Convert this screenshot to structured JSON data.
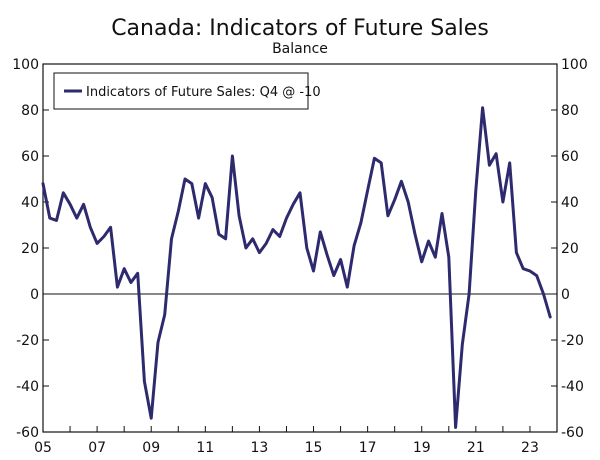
{
  "chart_data": {
    "type": "line",
    "title": "Canada: Indicators of Future Sales",
    "subtitle": "Balance",
    "xlabel": "",
    "ylabel": "",
    "ylim": [
      -60,
      100
    ],
    "y_ticks": [
      -60,
      -40,
      -20,
      0,
      20,
      40,
      60,
      80,
      100
    ],
    "y_tick_labels": [
      "-60",
      "-40",
      "-20",
      "0",
      "20",
      "40",
      "60",
      "80",
      "100"
    ],
    "xlim": [
      2005.0,
      2024.0
    ],
    "x_ticks": [
      2005,
      2007,
      2009,
      2011,
      2013,
      2015,
      2017,
      2019,
      2021,
      2023
    ],
    "x_tick_labels": [
      "05",
      "07",
      "09",
      "11",
      "13",
      "15",
      "17",
      "19",
      "21",
      "23"
    ],
    "right_axis": true,
    "grid": false,
    "zero_line": true,
    "legend": {
      "placement": "top-left",
      "entries": [
        "Indicators of Future Sales: Q4 @ -10"
      ]
    },
    "series": [
      {
        "name": "Indicators of Future Sales: Q4 @ -10",
        "color": "#2e2a6e",
        "x": [
          2005.0,
          2005.25,
          2005.5,
          2005.75,
          2006.0,
          2006.25,
          2006.5,
          2006.75,
          2007.0,
          2007.25,
          2007.5,
          2007.75,
          2008.0,
          2008.25,
          2008.5,
          2008.75,
          2009.0,
          2009.25,
          2009.5,
          2009.75,
          2010.0,
          2010.25,
          2010.5,
          2010.75,
          2011.0,
          2011.25,
          2011.5,
          2011.75,
          2012.0,
          2012.25,
          2012.5,
          2012.75,
          2013.0,
          2013.25,
          2013.5,
          2013.75,
          2014.0,
          2014.25,
          2014.5,
          2014.75,
          2015.0,
          2015.25,
          2015.5,
          2015.75,
          2016.0,
          2016.25,
          2016.5,
          2016.75,
          2017.0,
          2017.25,
          2017.5,
          2017.75,
          2018.0,
          2018.25,
          2018.5,
          2018.75,
          2019.0,
          2019.25,
          2019.5,
          2019.75,
          2020.0,
          2020.25,
          2020.5,
          2020.75,
          2021.0,
          2021.25,
          2021.5,
          2021.75,
          2022.0,
          2022.25,
          2022.5,
          2022.75,
          2023.0,
          2023.25,
          2023.5,
          2023.75
        ],
        "y": [
          48,
          33,
          32,
          44,
          39,
          33,
          39,
          29,
          22,
          25,
          29,
          3,
          11,
          5,
          9,
          -38,
          -54,
          -21,
          -9,
          24,
          36,
          50,
          48,
          33,
          48,
          42,
          26,
          24,
          60,
          34,
          20,
          24,
          18,
          22,
          28,
          25,
          33,
          39,
          44,
          20,
          10,
          27,
          17,
          8,
          15,
          3,
          21,
          31,
          45,
          59,
          57,
          34,
          41,
          49,
          40,
          26,
          14,
          23,
          16,
          35,
          16,
          -58,
          -22,
          0,
          45,
          81,
          56,
          61,
          40,
          57,
          18,
          11,
          10,
          8,
          0,
          -10
        ]
      }
    ]
  }
}
